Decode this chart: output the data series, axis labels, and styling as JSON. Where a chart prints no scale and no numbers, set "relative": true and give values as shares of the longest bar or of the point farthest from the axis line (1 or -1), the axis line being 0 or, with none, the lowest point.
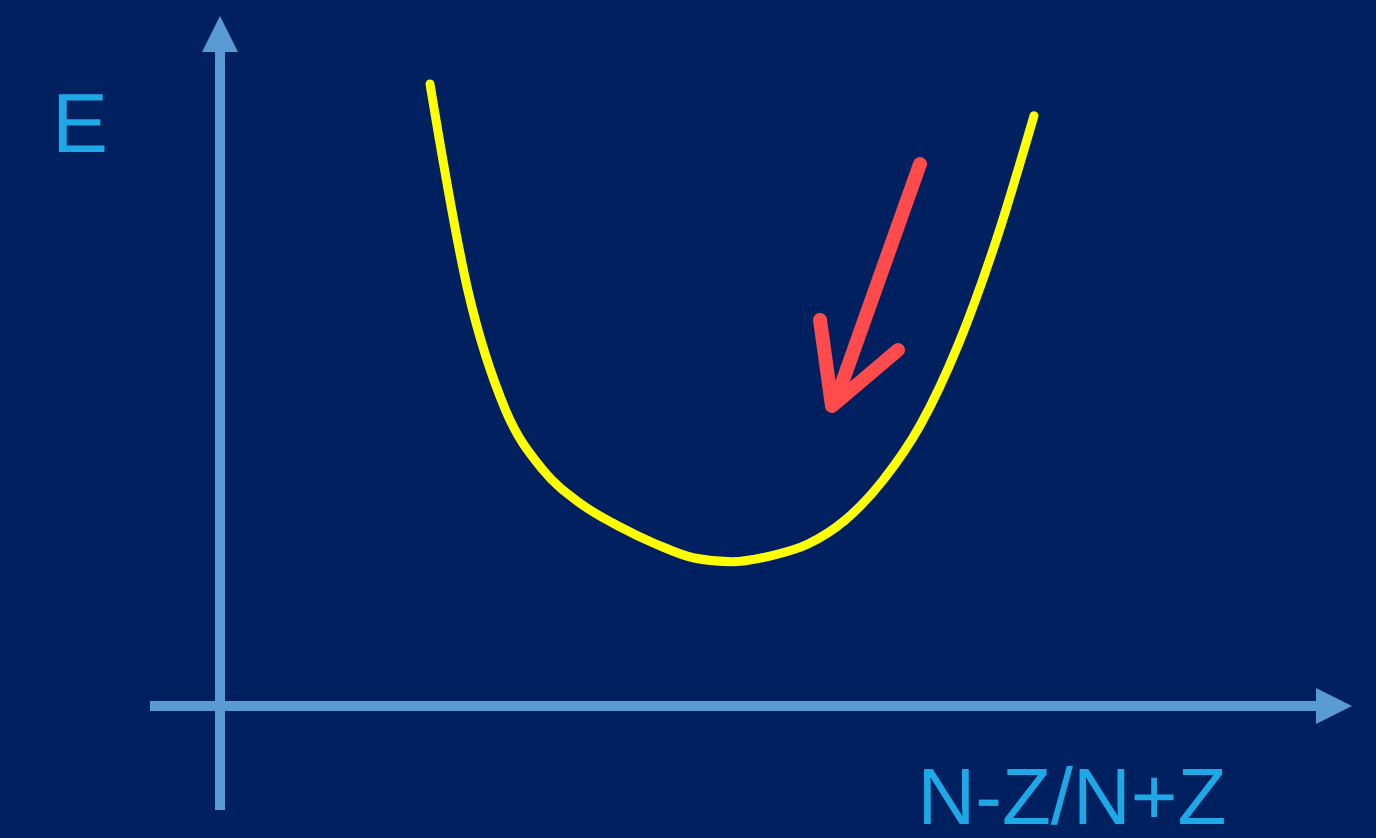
{
  "chart_data": {
    "type": "line",
    "relative": true,
    "xlabel": "N-Z/N+Z",
    "ylabel": "E",
    "marker": "none",
    "categories": [
      null,
      null,
      null,
      null,
      null,
      null,
      null,
      null,
      null,
      null,
      null,
      null,
      null,
      null,
      null,
      null,
      null
    ],
    "series": [
      {
        "color": "#ffff00",
        "values": [
          1.0,
          0.669,
          0.476,
          0.379,
          0.325,
          0.289,
          0.26,
          0.238,
          0.232,
          0.241,
          0.26,
          0.299,
          0.363,
          0.453,
          0.582,
          0.749,
          0.949
        ]
      }
    ]
  }
}
